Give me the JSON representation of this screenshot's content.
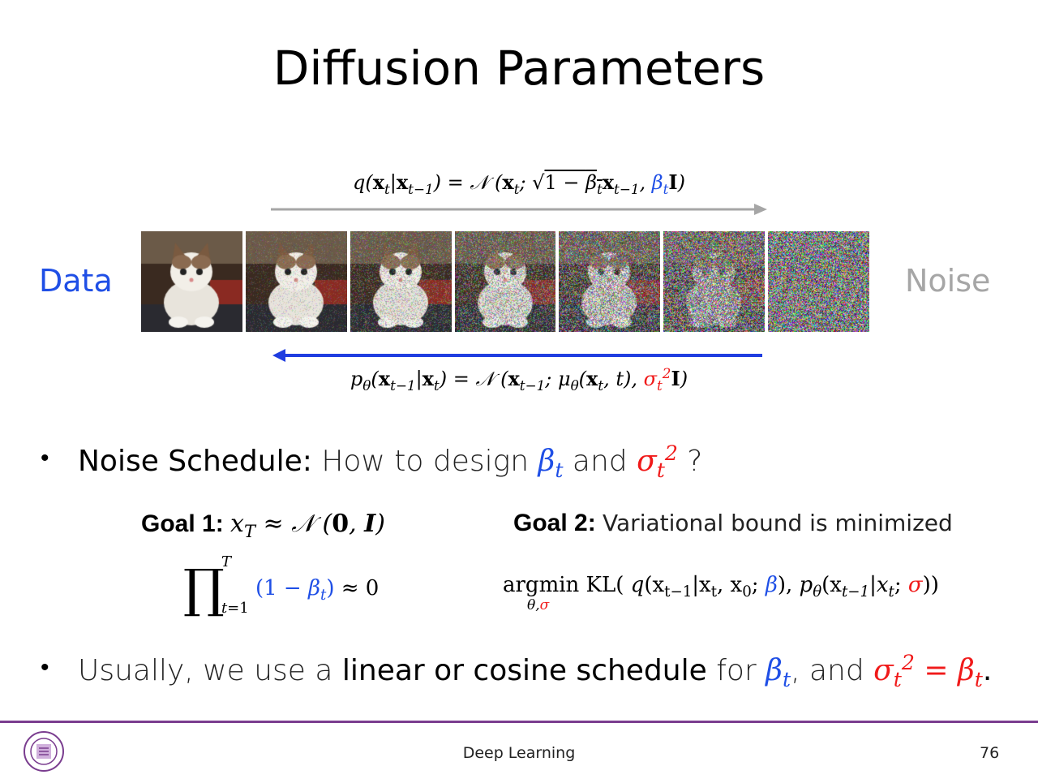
{
  "slide": {
    "title": "Diffusion Parameters",
    "page_number": "76",
    "footer_title": "Deep Learning"
  },
  "diagram": {
    "left_label": "Data",
    "right_label": "Noise",
    "forward_arrow_color": "#a6a6a6",
    "reverse_arrow_color": "#1f3de0",
    "noise_levels": [
      0,
      0.25,
      0.42,
      0.58,
      0.72,
      0.86,
      1.0
    ]
  },
  "bullets": {
    "b1_bold": "Noise Schedule:",
    "b1_rest": "How to design",
    "b1_and": "and",
    "b1_q": "?",
    "b2_pre": "Usually, we use a",
    "b2_bold": "linear or cosine schedule",
    "b2_mid": "for",
    "b2_and": ", and",
    "b2_end": "."
  },
  "goals": {
    "goal1_label": "Goal 1:",
    "goal2_label": "Goal 2:",
    "goal2_text": "Variational bound is minimized"
  },
  "colors": {
    "accent_blue": "#1f4fe6",
    "accent_red": "#f01a1a",
    "footer_purple": "#7a3d8f"
  }
}
